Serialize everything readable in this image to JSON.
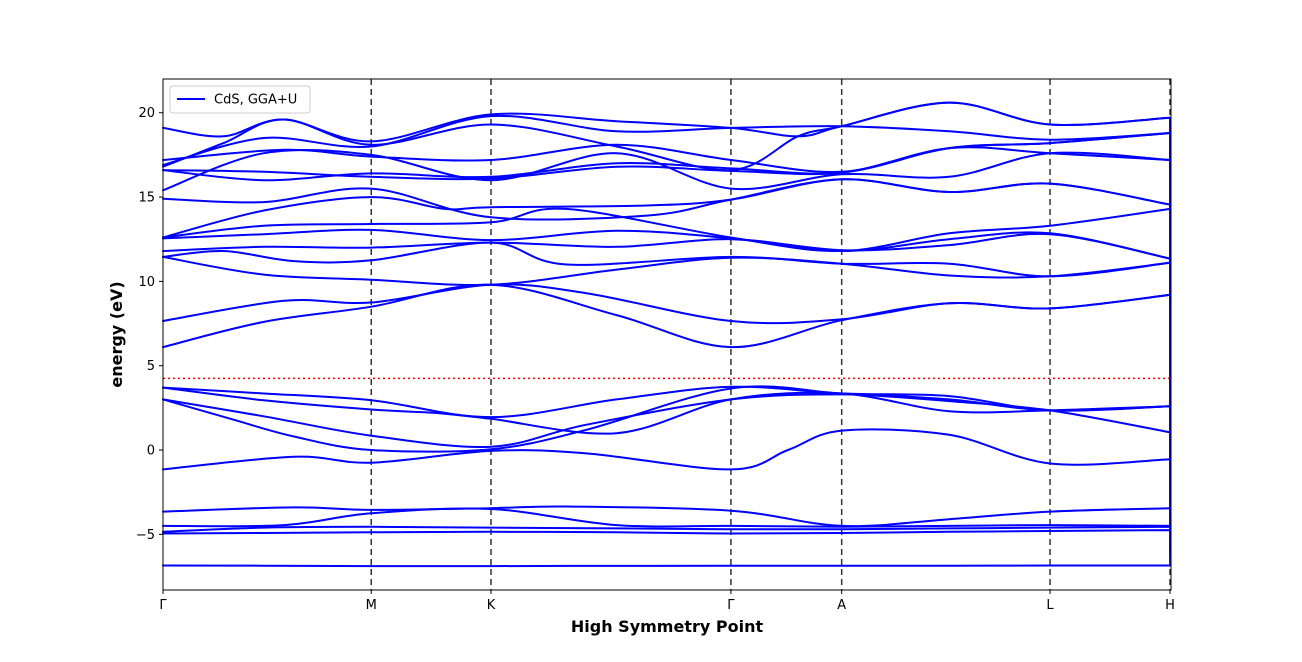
{
  "chart_data": {
    "type": "line",
    "title": "",
    "xlabel": "High Symmetry Point",
    "ylabel": "energy (eV)",
    "ylim": [
      -8.3,
      22.0
    ],
    "xlim": [
      0,
      1
    ],
    "yticks": [
      -5,
      0,
      5,
      10,
      15,
      20
    ],
    "grid": false,
    "legend": {
      "placement": "top-left",
      "entries": [
        "CdS, GGA+U"
      ]
    },
    "high_symmetry_points": [
      {
        "label": "Γ",
        "x": 0.0
      },
      {
        "label": "M",
        "x": 0.2066
      },
      {
        "label": "K",
        "x": 0.3254
      },
      {
        "label": "Γ",
        "x": 0.5634
      },
      {
        "label": "A",
        "x": 0.6733
      },
      {
        "label": "L",
        "x": 0.88
      },
      {
        "label": "H",
        "x": 0.999
      }
    ],
    "fermi_level": 4.25,
    "colors": {
      "bands": "#0000ff",
      "fermi": "#ff0000",
      "kpath": "#333333"
    },
    "series": [
      {
        "name": "CdS, GGA+U",
        "x": [
          0,
          0.1,
          0.2066,
          0.28,
          0.3254,
          0.45,
          0.5634,
          0.62,
          0.6733,
          0.78,
          0.88,
          0.999
        ],
        "values": [
          -6.85,
          -6.86,
          -6.88,
          -6.88,
          -6.88,
          -6.87,
          -6.86,
          -6.86,
          -6.86,
          -6.86,
          -6.85,
          -6.85
        ]
      },
      {
        "x": [
          0,
          0.1,
          0.2066,
          0.3254,
          0.45,
          0.5634,
          0.6733,
          0.78,
          0.88,
          0.999
        ],
        "values": [
          -4.95,
          -4.92,
          -4.88,
          -4.85,
          -4.88,
          -4.95,
          -4.92,
          -4.85,
          -4.8,
          -4.75
        ]
      },
      {
        "x": [
          0,
          0.1,
          0.2066,
          0.3254,
          0.45,
          0.5634,
          0.6733,
          0.78,
          0.88,
          0.999
        ],
        "values": [
          -4.85,
          -4.6,
          -4.55,
          -4.6,
          -4.65,
          -4.7,
          -4.7,
          -4.65,
          -4.6,
          -4.55
        ]
      },
      {
        "x": [
          0,
          0.12,
          0.2066,
          0.3254,
          0.45,
          0.5634,
          0.6733,
          0.78,
          0.88,
          0.999
        ],
        "values": [
          -4.5,
          -4.45,
          -3.75,
          -3.5,
          -4.45,
          -4.5,
          -4.55,
          -4.5,
          -4.45,
          -4.5
        ]
      },
      {
        "x": [
          0,
          0.13,
          0.2066,
          0.3254,
          0.4,
          0.5634,
          0.6733,
          0.78,
          0.88,
          0.999
        ],
        "values": [
          -3.65,
          -3.4,
          -3.55,
          -3.45,
          -3.35,
          -3.6,
          -4.5,
          -4.1,
          -3.65,
          -3.45
        ]
      },
      {
        "x": [
          0,
          0.13,
          0.2066,
          0.3254,
          0.42,
          0.5634,
          0.62,
          0.6733,
          0.78,
          0.88,
          0.999
        ],
        "values": [
          -1.15,
          -0.4,
          -0.75,
          -0.05,
          -0.2,
          -1.15,
          0.0,
          1.15,
          0.9,
          -0.8,
          -0.55
        ]
      },
      {
        "x": [
          0,
          0.07,
          0.13,
          0.2066,
          0.3254,
          0.42,
          0.5634,
          0.6733,
          0.78,
          0.88,
          0.999
        ],
        "values": [
          3.0,
          1.8,
          0.8,
          0.0,
          0.05,
          1.2,
          3.65,
          3.35,
          2.9,
          2.35,
          1.05
        ]
      },
      {
        "x": [
          0,
          0.1,
          0.2066,
          0.3254,
          0.42,
          0.5634,
          0.6733,
          0.78,
          0.88,
          0.999
        ],
        "values": [
          3.0,
          2.0,
          0.85,
          0.2,
          1.5,
          3.0,
          3.3,
          3.0,
          2.35,
          2.6
        ]
      },
      {
        "x": [
          0,
          0.1,
          0.2066,
          0.27,
          0.3254,
          0.45,
          0.5634,
          0.6733,
          0.78,
          0.88,
          0.999
        ],
        "values": [
          3.7,
          2.95,
          2.4,
          2.2,
          1.85,
          1.0,
          3.0,
          3.35,
          2.3,
          2.35,
          2.6
        ]
      },
      {
        "x": [
          0,
          0.1,
          0.2066,
          0.3254,
          0.45,
          0.5634,
          0.6733,
          0.78,
          0.88,
          0.999
        ],
        "values": [
          3.7,
          3.35,
          2.95,
          1.95,
          3.0,
          3.75,
          3.35,
          3.2,
          2.35,
          2.6
        ]
      },
      {
        "x": [
          0,
          0.1,
          0.2066,
          0.3254,
          0.45,
          0.5634,
          0.6733,
          0.78,
          0.88,
          0.999
        ],
        "values": [
          6.1,
          7.6,
          8.5,
          9.8,
          8.0,
          6.1,
          7.7,
          8.7,
          8.4,
          9.2
        ]
      },
      {
        "x": [
          0,
          0.12,
          0.2066,
          0.3254,
          0.42,
          0.5634,
          0.6733,
          0.78,
          0.88,
          0.999
        ],
        "values": [
          7.65,
          8.85,
          8.75,
          9.8,
          9.3,
          7.65,
          7.75,
          8.7,
          8.4,
          9.2
        ]
      },
      {
        "x": [
          0,
          0.1,
          0.2066,
          0.3254,
          0.45,
          0.5634,
          0.6733,
          0.78,
          0.88,
          0.999
        ],
        "values": [
          11.45,
          10.4,
          10.1,
          9.8,
          10.7,
          11.4,
          11.05,
          10.35,
          10.3,
          11.1
        ]
      },
      {
        "x": [
          0,
          0.06,
          0.13,
          0.2066,
          0.3254,
          0.4,
          0.5634,
          0.6733,
          0.78,
          0.88,
          0.999
        ],
        "values": [
          11.45,
          11.8,
          11.2,
          11.25,
          12.3,
          11.0,
          11.45,
          11.05,
          11.05,
          10.3,
          11.1
        ]
      },
      {
        "x": [
          0,
          0.1,
          0.2066,
          0.3254,
          0.45,
          0.5634,
          0.6733,
          0.78,
          0.88,
          0.999
        ],
        "values": [
          11.8,
          12.05,
          12.0,
          12.3,
          12.05,
          12.5,
          11.85,
          12.15,
          12.8,
          11.35
        ]
      },
      {
        "x": [
          0,
          0.1,
          0.2066,
          0.3254,
          0.45,
          0.5634,
          0.6733,
          0.78,
          0.88,
          0.999
        ],
        "values": [
          12.55,
          12.8,
          13.05,
          12.45,
          13.0,
          12.55,
          11.8,
          12.5,
          12.85,
          11.35
        ]
      },
      {
        "x": [
          0,
          0.1,
          0.2066,
          0.3254,
          0.4,
          0.5634,
          0.6733,
          0.78,
          0.88,
          0.999
        ],
        "values": [
          12.6,
          13.3,
          13.4,
          13.5,
          14.3,
          12.6,
          11.8,
          12.85,
          13.3,
          14.3
        ]
      },
      {
        "x": [
          0,
          0.1,
          0.2066,
          0.28,
          0.3254,
          0.48,
          0.5634,
          0.6733,
          0.78,
          0.88,
          0.999
        ],
        "values": [
          12.6,
          14.2,
          15.0,
          14.3,
          14.4,
          14.5,
          14.85,
          16.05,
          15.3,
          15.8,
          14.55
        ]
      },
      {
        "x": [
          0,
          0.1,
          0.2066,
          0.3254,
          0.48,
          0.5634,
          0.6733,
          0.78,
          0.88,
          0.999
        ],
        "values": [
          14.9,
          14.7,
          15.5,
          13.8,
          13.9,
          14.85,
          16.05,
          15.3,
          15.8,
          14.55
        ]
      },
      {
        "x": [
          0,
          0.1,
          0.2066,
          0.3254,
          0.45,
          0.5634,
          0.6733,
          0.78,
          0.88,
          0.999
        ],
        "values": [
          15.4,
          17.6,
          17.5,
          16.0,
          17.6,
          15.5,
          16.35,
          16.2,
          17.6,
          17.2
        ]
      },
      {
        "x": [
          0,
          0.1,
          0.2066,
          0.3254,
          0.45,
          0.5634,
          0.6733,
          0.78,
          0.88,
          0.999
        ],
        "values": [
          16.6,
          16.5,
          16.2,
          16.1,
          16.8,
          16.55,
          16.45,
          17.9,
          17.6,
          17.2
        ]
      },
      {
        "x": [
          0,
          0.1,
          0.2066,
          0.3254,
          0.45,
          0.5634,
          0.6733,
          0.78,
          0.88,
          0.999
        ],
        "values": [
          16.6,
          16.0,
          16.4,
          16.2,
          17.0,
          16.7,
          16.45,
          17.9,
          18.2,
          18.8
        ]
      },
      {
        "x": [
          0,
          0.12,
          0.2066,
          0.3254,
          0.45,
          0.5634,
          0.6733,
          0.78,
          0.88,
          0.999
        ],
        "values": [
          17.2,
          17.8,
          17.4,
          17.2,
          18.1,
          17.2,
          16.5,
          17.9,
          18.2,
          18.8
        ]
      },
      {
        "x": [
          0,
          0.06,
          0.12,
          0.2066,
          0.3254,
          0.45,
          0.5634,
          0.63,
          0.6733,
          0.78,
          0.88,
          0.999
        ],
        "values": [
          16.8,
          18.2,
          19.6,
          18.1,
          19.3,
          18.0,
          16.6,
          18.6,
          19.2,
          20.6,
          19.3,
          19.7
        ]
      },
      {
        "x": [
          0,
          0.06,
          0.12,
          0.2066,
          0.3254,
          0.45,
          0.5634,
          0.63,
          0.6733,
          0.78,
          0.88,
          0.999
        ],
        "values": [
          19.1,
          18.6,
          19.6,
          18.3,
          19.9,
          19.5,
          19.1,
          18.6,
          19.2,
          20.6,
          19.3,
          19.7
        ]
      },
      {
        "x": [
          0,
          0.1,
          0.2066,
          0.3254,
          0.45,
          0.5634,
          0.6733,
          0.78,
          0.88,
          0.999
        ],
        "values": [
          16.9,
          18.5,
          18.0,
          19.8,
          18.9,
          19.1,
          19.2,
          18.9,
          18.4,
          18.8
        ]
      }
    ]
  }
}
